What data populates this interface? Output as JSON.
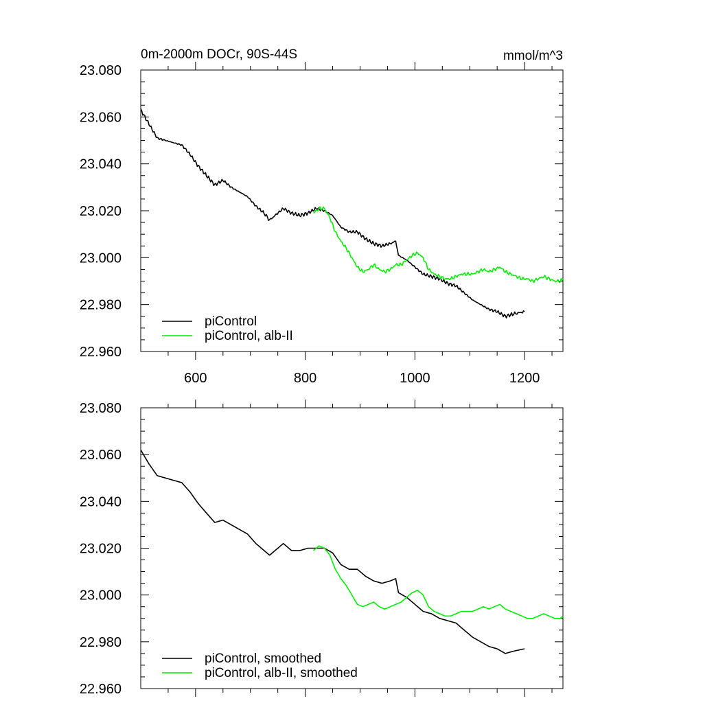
{
  "header": {
    "title": "0m-2000m DOCr, 90S-44S",
    "units": "mmol/m^3"
  },
  "colors": {
    "piControl": "#000000",
    "alb_II": "#00ee00"
  },
  "chart_data": [
    {
      "type": "line",
      "xlim": [
        500,
        1270
      ],
      "ylim": [
        22.96,
        23.08
      ],
      "yticks": [
        "23.080",
        "23.060",
        "23.040",
        "23.020",
        "23.000",
        "22.980",
        "22.960"
      ],
      "xticks": [
        "600",
        "800",
        "1000",
        "1200"
      ],
      "show_x_tick_labels": true,
      "grid": false,
      "legend_position": "bottom-left",
      "series": [
        {
          "name": "piControl",
          "color": "#000000",
          "x": [
            500,
            515,
            530,
            545,
            560,
            575,
            590,
            605,
            620,
            635,
            650,
            665,
            680,
            695,
            710,
            725,
            735,
            745,
            760,
            775,
            790,
            805,
            820,
            835,
            850,
            865,
            880,
            895,
            910,
            925,
            940,
            955,
            965,
            970,
            985,
            1000,
            1015,
            1030,
            1045,
            1060,
            1075,
            1090,
            1105,
            1120,
            1135,
            1150,
            1165,
            1180,
            1200
          ],
          "y": [
            23.063,
            23.057,
            23.051,
            23.05,
            23.049,
            23.048,
            23.044,
            23.039,
            23.035,
            23.031,
            23.033,
            23.03,
            23.028,
            23.026,
            23.022,
            23.019,
            23.016,
            23.018,
            23.021,
            23.019,
            23.018,
            23.019,
            23.021,
            23.02,
            23.018,
            23.013,
            23.011,
            23.011,
            23.008,
            23.006,
            23.005,
            23.006,
            23.007,
            23.001,
            22.999,
            22.996,
            22.993,
            22.992,
            22.991,
            22.989,
            22.988,
            22.985,
            22.982,
            22.98,
            22.978,
            22.977,
            22.975,
            22.976,
            22.977
          ]
        },
        {
          "name": "piControl, alb-II",
          "color": "#00ee00",
          "x": [
            815,
            825,
            835,
            845,
            855,
            865,
            875,
            885,
            895,
            905,
            915,
            925,
            935,
            945,
            955,
            965,
            975,
            985,
            995,
            1005,
            1015,
            1025,
            1035,
            1045,
            1055,
            1065,
            1075,
            1085,
            1095,
            1105,
            1115,
            1125,
            1135,
            1145,
            1155,
            1165,
            1175,
            1185,
            1195,
            1205,
            1215,
            1225,
            1235,
            1245,
            1255,
            1265,
            1270
          ],
          "y": [
            23.019,
            23.021,
            23.021,
            23.017,
            23.011,
            23.007,
            23.004,
            23.0,
            22.996,
            22.994,
            22.995,
            22.997,
            22.995,
            22.994,
            22.995,
            22.997,
            22.997,
            22.999,
            23.001,
            23.002,
            23.0,
            22.995,
            22.993,
            22.992,
            22.991,
            22.991,
            22.992,
            22.993,
            22.993,
            22.993,
            22.994,
            22.995,
            22.994,
            22.995,
            22.996,
            22.994,
            22.993,
            22.992,
            22.991,
            22.991,
            22.99,
            22.991,
            22.992,
            22.991,
            22.99,
            22.99,
            22.991
          ]
        }
      ]
    },
    {
      "type": "line",
      "xlim": [
        500,
        1270
      ],
      "ylim": [
        22.96,
        23.08
      ],
      "yticks": [
        "23.080",
        "23.060",
        "23.040",
        "23.020",
        "23.000",
        "22.980",
        "22.960"
      ],
      "xticks": [
        "600",
        "800",
        "1000",
        "1200"
      ],
      "show_x_tick_labels": false,
      "grid": false,
      "legend_position": "bottom-left",
      "series": [
        {
          "name": "piControl, smoothed",
          "color": "#000000",
          "x": [
            500,
            515,
            530,
            545,
            560,
            575,
            590,
            605,
            620,
            635,
            650,
            665,
            680,
            695,
            710,
            725,
            735,
            745,
            760,
            775,
            790,
            805,
            820,
            835,
            850,
            865,
            880,
            895,
            910,
            925,
            940,
            955,
            965,
            970,
            985,
            1000,
            1015,
            1030,
            1045,
            1060,
            1075,
            1090,
            1105,
            1120,
            1135,
            1150,
            1165,
            1180,
            1200
          ],
          "y": [
            23.062,
            23.056,
            23.051,
            23.05,
            23.049,
            23.048,
            23.044,
            23.039,
            23.035,
            23.031,
            23.032,
            23.03,
            23.028,
            23.026,
            23.022,
            23.019,
            23.017,
            23.019,
            23.022,
            23.019,
            23.019,
            23.02,
            23.02,
            23.02,
            23.018,
            23.013,
            23.011,
            23.011,
            23.008,
            23.006,
            23.005,
            23.006,
            23.007,
            23.001,
            22.999,
            22.996,
            22.993,
            22.992,
            22.99,
            22.989,
            22.988,
            22.985,
            22.982,
            22.98,
            22.978,
            22.977,
            22.975,
            22.976,
            22.977
          ]
        },
        {
          "name": "piControl, alb-II, smoothed",
          "color": "#00ee00",
          "x": [
            815,
            825,
            835,
            845,
            855,
            865,
            875,
            885,
            895,
            905,
            915,
            925,
            935,
            945,
            955,
            965,
            975,
            985,
            995,
            1005,
            1015,
            1025,
            1035,
            1045,
            1055,
            1065,
            1075,
            1085,
            1095,
            1105,
            1115,
            1125,
            1135,
            1145,
            1155,
            1165,
            1175,
            1185,
            1195,
            1205,
            1215,
            1225,
            1235,
            1245,
            1255,
            1265,
            1270
          ],
          "y": [
            23.019,
            23.021,
            23.02,
            23.017,
            23.011,
            23.007,
            23.004,
            23.0,
            22.996,
            22.995,
            22.996,
            22.997,
            22.995,
            22.994,
            22.995,
            22.996,
            22.997,
            22.999,
            23.001,
            23.002,
            23.0,
            22.995,
            22.993,
            22.992,
            22.991,
            22.991,
            22.992,
            22.993,
            22.993,
            22.993,
            22.994,
            22.995,
            22.994,
            22.995,
            22.996,
            22.994,
            22.993,
            22.992,
            22.991,
            22.99,
            22.99,
            22.991,
            22.992,
            22.991,
            22.99,
            22.99,
            22.991
          ]
        }
      ]
    }
  ]
}
